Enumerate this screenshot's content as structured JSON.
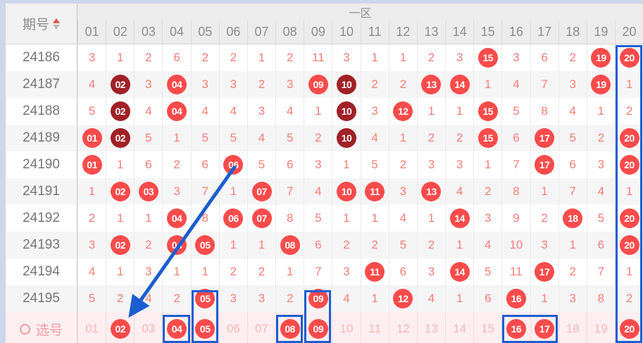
{
  "header": {
    "issue_label": "期号",
    "zone_label": "一区"
  },
  "grid": {
    "columns": [
      "01",
      "02",
      "03",
      "04",
      "05",
      "06",
      "07",
      "08",
      "09",
      "10",
      "11",
      "12",
      "13",
      "14",
      "15",
      "16",
      "17",
      "18",
      "19",
      "20"
    ],
    "rows": [
      {
        "issue": "24186",
        "cells": [
          "3",
          "1",
          "2",
          "6",
          "2",
          "2",
          "1",
          "2",
          "11",
          "3",
          "1",
          "1",
          "2",
          "3",
          "15",
          "3",
          "6",
          "2",
          "19",
          "20"
        ],
        "light": [
          15,
          19,
          20
        ],
        "dark": []
      },
      {
        "issue": "24187",
        "cells": [
          "4",
          "02",
          "3",
          "04",
          "3",
          "3",
          "2",
          "3",
          "09",
          "10",
          "2",
          "2",
          "13",
          "14",
          "1",
          "4",
          "7",
          "3",
          "19",
          "1"
        ],
        "light": [
          4,
          9,
          13,
          14,
          19
        ],
        "dark": [
          2,
          10
        ]
      },
      {
        "issue": "24188",
        "cells": [
          "5",
          "02",
          "4",
          "04",
          "4",
          "4",
          "3",
          "4",
          "1",
          "10",
          "3",
          "12",
          "1",
          "1",
          "15",
          "5",
          "8",
          "4",
          "1",
          "2"
        ],
        "light": [
          4,
          12,
          15
        ],
        "dark": [
          2,
          10
        ]
      },
      {
        "issue": "24189",
        "cells": [
          "01",
          "02",
          "5",
          "1",
          "5",
          "5",
          "4",
          "5",
          "2",
          "10",
          "4",
          "1",
          "2",
          "2",
          "15",
          "6",
          "17",
          "5",
          "2",
          "20"
        ],
        "light": [
          1,
          15,
          17,
          20
        ],
        "dark": [
          2,
          10
        ]
      },
      {
        "issue": "24190",
        "cells": [
          "01",
          "1",
          "6",
          "2",
          "6",
          "06",
          "5",
          "6",
          "3",
          "1",
          "5",
          "2",
          "3",
          "3",
          "1",
          "7",
          "17",
          "6",
          "3",
          "20"
        ],
        "light": [
          1,
          6,
          17,
          20
        ],
        "dark": []
      },
      {
        "issue": "24191",
        "cells": [
          "1",
          "02",
          "03",
          "3",
          "7",
          "1",
          "07",
          "7",
          "4",
          "10",
          "11",
          "3",
          "13",
          "4",
          "2",
          "8",
          "1",
          "7",
          "4",
          "1"
        ],
        "light": [
          2,
          3,
          7,
          10,
          11,
          13
        ],
        "dark": []
      },
      {
        "issue": "24192",
        "cells": [
          "2",
          "1",
          "1",
          "04",
          "8",
          "06",
          "07",
          "8",
          "5",
          "1",
          "1",
          "4",
          "1",
          "14",
          "3",
          "9",
          "2",
          "18",
          "5",
          "20"
        ],
        "light": [
          4,
          6,
          7,
          14,
          18,
          20
        ],
        "dark": []
      },
      {
        "issue": "24193",
        "cells": [
          "3",
          "02",
          "2",
          "04",
          "05",
          "1",
          "1",
          "08",
          "6",
          "2",
          "2",
          "5",
          "2",
          "1",
          "4",
          "10",
          "3",
          "1",
          "6",
          "20"
        ],
        "light": [
          2,
          4,
          5,
          8,
          20
        ],
        "dark": []
      },
      {
        "issue": "24194",
        "cells": [
          "4",
          "1",
          "3",
          "1",
          "1",
          "2",
          "2",
          "1",
          "7",
          "3",
          "11",
          "6",
          "3",
          "14",
          "5",
          "11",
          "17",
          "2",
          "7",
          "1"
        ],
        "light": [
          11,
          14,
          17
        ],
        "dark": []
      },
      {
        "issue": "24195",
        "cells": [
          "5",
          "2",
          "4",
          "2",
          "05",
          "3",
          "3",
          "2",
          "09",
          "4",
          "1",
          "12",
          "4",
          "1",
          "6",
          "16",
          "1",
          "3",
          "8",
          "2"
        ],
        "light": [
          5,
          9,
          12,
          16
        ],
        "dark": []
      }
    ]
  },
  "select_row": {
    "label": "选号",
    "radio_icon": "circle-outline",
    "cells": [
      "01",
      "02",
      "03",
      "04",
      "05",
      "06",
      "07",
      "08",
      "09",
      "10",
      "11",
      "12",
      "13",
      "14",
      "15",
      "16",
      "17",
      "18",
      "19",
      "20"
    ],
    "selected": [
      2,
      4,
      5,
      8,
      9,
      16,
      17,
      20
    ]
  },
  "annotations": {
    "boxes": [
      {
        "name": "highlight-box-col20-full",
        "col_start": 20,
        "col_end": 20,
        "area": "full"
      },
      {
        "name": "highlight-box-col05-streak",
        "col_start": 5,
        "col_end": 5,
        "area": "last_and_select"
      },
      {
        "name": "highlight-box-col04-select",
        "col_start": 4,
        "col_end": 4,
        "area": "select"
      },
      {
        "name": "highlight-box-col09-streak",
        "col_start": 9,
        "col_end": 9,
        "area": "last_and_select"
      },
      {
        "name": "highlight-box-col08-select",
        "col_start": 8,
        "col_end": 8,
        "area": "select"
      },
      {
        "name": "highlight-box-col16-17-select",
        "col_start": 16,
        "col_end": 17,
        "area": "select"
      }
    ],
    "arrow": {
      "from_issue": "24190",
      "from_col": 6,
      "to_select_col": 2
    }
  },
  "colors": {
    "ball_light": "#fa4b4b",
    "ball_dark": "#a02126",
    "miss_text": "#f87d76",
    "annotation_blue": "#1b5ecf",
    "select_row_bg": "#fdeef0",
    "page_bg": "#cdd7ea"
  }
}
